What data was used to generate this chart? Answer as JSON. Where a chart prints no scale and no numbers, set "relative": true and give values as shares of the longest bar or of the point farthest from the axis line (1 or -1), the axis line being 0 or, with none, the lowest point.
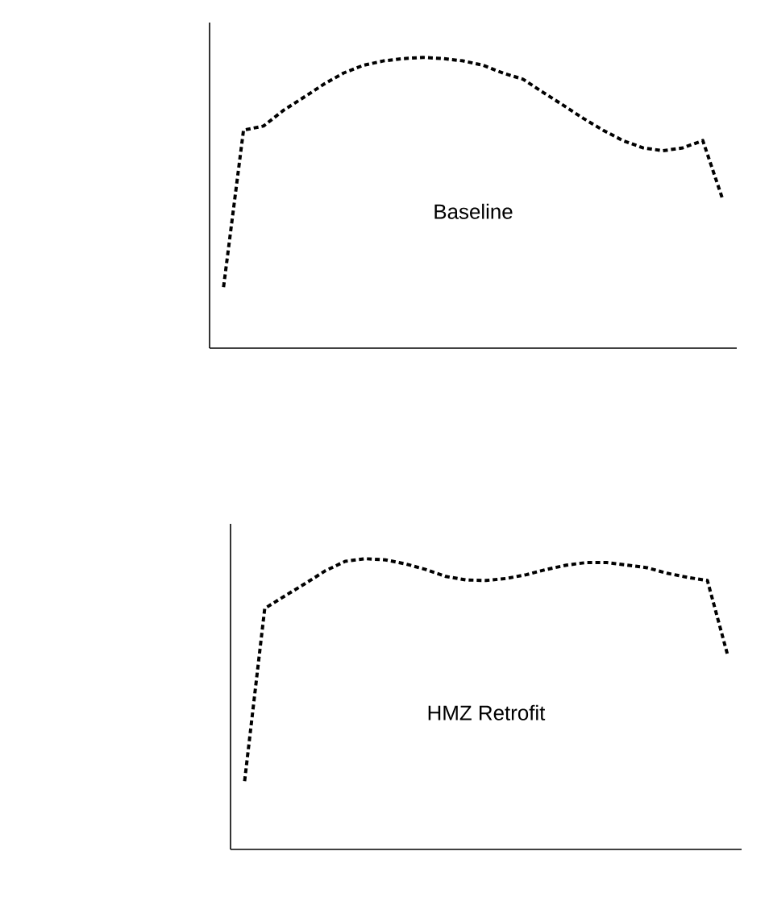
{
  "chart_data": [
    {
      "type": "line",
      "relative": true,
      "line_style": "dashed",
      "color": "#000000",
      "annotations": [
        "Baseline"
      ],
      "categories": [
        null,
        null,
        null,
        null,
        null,
        null,
        null,
        null,
        null,
        null,
        null,
        null,
        null,
        null,
        null,
        null,
        null,
        null,
        null,
        null,
        null,
        null,
        null,
        null,
        null,
        null
      ],
      "values": [
        0.21,
        0.75,
        0.764,
        0.818,
        0.862,
        0.907,
        0.946,
        0.973,
        0.988,
        0.996,
        1,
        0.996,
        0.988,
        0.973,
        0.946,
        0.925,
        0.88,
        0.836,
        0.791,
        0.75,
        0.714,
        0.689,
        0.679,
        0.689,
        0.714,
        0.511
      ]
    },
    {
      "type": "line",
      "relative": true,
      "line_style": "dashed",
      "color": "#000000",
      "annotations": [
        "HMZ Retrofit"
      ],
      "categories": [
        null,
        null,
        null,
        null,
        null,
        null,
        null,
        null,
        null,
        null,
        null,
        null,
        null,
        null,
        null,
        null,
        null,
        null,
        null,
        null,
        null,
        null,
        null,
        null,
        null
      ],
      "values": [
        0.235,
        0.829,
        0.872,
        0.914,
        0.958,
        0.991,
        1,
        0.996,
        0.982,
        0.963,
        0.939,
        0.927,
        0.925,
        0.932,
        0.945,
        0.963,
        0.978,
        0.987,
        0.987,
        0.978,
        0.969,
        0.95,
        0.936,
        0.925,
        0.67
      ]
    }
  ]
}
